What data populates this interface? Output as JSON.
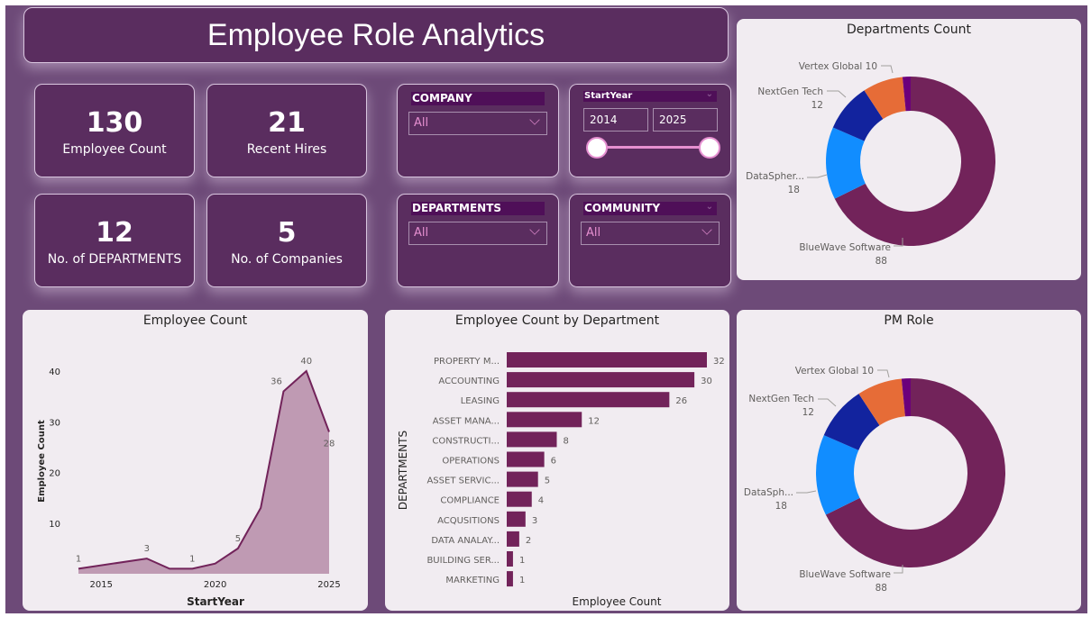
{
  "title": "Employee Role Analytics",
  "kpis": [
    {
      "value": "130",
      "label": "Employee Count"
    },
    {
      "value": "21",
      "label": "Recent Hires"
    },
    {
      "value": "12",
      "label": "No. of DEPARTMENTS"
    },
    {
      "value": "5",
      "label": "No. of Companies"
    }
  ],
  "slicers": {
    "company": {
      "label": "COMPANY",
      "value": "All"
    },
    "departments": {
      "label": "DEPARTMENTS",
      "value": "All"
    },
    "community": {
      "label": "COMMUNITY",
      "value": "All"
    },
    "start_year": {
      "label": "StartYear",
      "from": "2014",
      "to": "2025"
    }
  },
  "colors": {
    "primary": "#72235a",
    "area_fill": "#bf9ab3",
    "slice_colors": [
      "#72235a",
      "#118dff",
      "#12239e",
      "#e66c37",
      "#6b007b"
    ]
  },
  "chart_data": [
    {
      "id": "departments_count",
      "type": "pie",
      "title": "Departments Count",
      "labels": [
        "BlueWave Software",
        "DataSpher...",
        "NextGen Tech",
        "Vertex Global",
        ""
      ],
      "values": [
        88,
        18,
        12,
        10,
        2
      ],
      "donut": true
    },
    {
      "id": "employee_count",
      "type": "area",
      "title": "Employee Count",
      "xlabel": "StartYear",
      "ylabel": "Employee Count",
      "x": [
        2014,
        2017,
        2018,
        2019,
        2020,
        2021,
        2022,
        2023,
        2024,
        2025
      ],
      "values": [
        1,
        3,
        1,
        1,
        2,
        5,
        13,
        36,
        40,
        28
      ],
      "labeled": [
        true,
        true,
        false,
        true,
        false,
        true,
        false,
        true,
        true,
        true
      ],
      "xticks": [
        "2015",
        "2020",
        "2025"
      ],
      "yticks": [
        "10",
        "20",
        "30",
        "40"
      ],
      "xlim": [
        2014,
        2026
      ],
      "ylim": [
        0,
        45
      ],
      "grid": false
    },
    {
      "id": "employee_count_by_department",
      "type": "bar",
      "orientation": "horizontal",
      "title": "Employee Count by Department",
      "xlabel": "Employee Count",
      "ylabel": "DEPARTMENTS",
      "categories": [
        "PROPERTY M...",
        "ACCOUNTING",
        "LEASING",
        "ASSET MANA...",
        "CONSTRUCTI...",
        "OPERATIONS",
        "ASSET SERVIC...",
        "COMPLIANCE",
        "ACQUSITIONS",
        "DATA ANALAY...",
        "BUILDING SER...",
        "MARKETING"
      ],
      "values": [
        32,
        30,
        26,
        12,
        8,
        6,
        5,
        4,
        3,
        2,
        1,
        1
      ]
    },
    {
      "id": "pm_role",
      "type": "pie",
      "title": "PM Role",
      "labels": [
        "BlueWave Software",
        "DataSph...",
        "NextGen Tech",
        "Vertex Global",
        ""
      ],
      "values": [
        88,
        18,
        12,
        10,
        2
      ],
      "donut": true
    }
  ]
}
